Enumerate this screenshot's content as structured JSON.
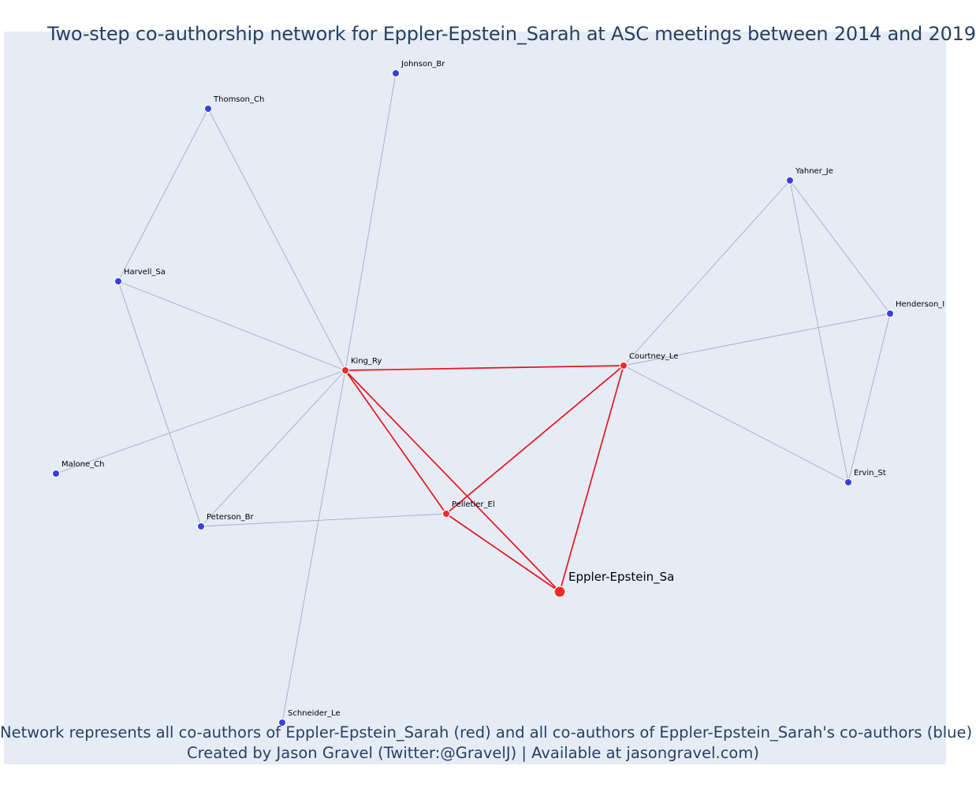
{
  "title": "Two-step co-authorship network for Eppler-Epstein_Sarah at ASC meetings between 2014 and 2019",
  "footer": {
    "line1": "Network represents all co-authors of Eppler-Epstein_Sarah (red) and all co-authors of Eppler-Epstein_Sarah's co-authors (blue)",
    "line2": "Created by Jason Gravel (Twitter:@GravelJ) | Available at jasongravel.com)"
  },
  "colors": {
    "plot_background": "#e5ecf6",
    "red_node": "#ef2b2b",
    "blue_node": "#3a3fe0",
    "red_edge": "#e8141a",
    "gray_edge": "#a7adbf",
    "title_text": "#2a3f5f"
  },
  "nodes": [
    {
      "id": "Eppler-Epstein_Sa",
      "label": "Eppler-Epstein_Sa",
      "group": "focal"
    },
    {
      "id": "King_Ry",
      "label": "King_Ry",
      "group": "red"
    },
    {
      "id": "Courtney_Le",
      "label": "Courtney_Le",
      "group": "red"
    },
    {
      "id": "Pelletier_El",
      "label": "Pelletier_El",
      "group": "red"
    },
    {
      "id": "Johnson_Br",
      "label": "Johnson_Br",
      "group": "blue"
    },
    {
      "id": "Thomson_Ch",
      "label": "Thomson_Ch",
      "group": "blue"
    },
    {
      "id": "Harvell_Sa",
      "label": "Harvell_Sa",
      "group": "blue"
    },
    {
      "id": "Malone_Ch",
      "label": "Malone_Ch",
      "group": "blue"
    },
    {
      "id": "Peterson_Br",
      "label": "Peterson_Br",
      "group": "blue"
    },
    {
      "id": "Schneider_Le",
      "label": "Schneider_Le",
      "group": "blue"
    },
    {
      "id": "Yahner_Je",
      "label": "Yahner_Je",
      "group": "blue"
    },
    {
      "id": "Henderson_I",
      "label": "Henderson_I",
      "group": "blue"
    },
    {
      "id": "Ervin_St",
      "label": "Ervin_St",
      "group": "blue"
    }
  ],
  "edges": [
    {
      "source": "King_Ry",
      "target": "Courtney_Le",
      "type": "red"
    },
    {
      "source": "King_Ry",
      "target": "Pelletier_El",
      "type": "red"
    },
    {
      "source": "King_Ry",
      "target": "Eppler-Epstein_Sa",
      "type": "red"
    },
    {
      "source": "Courtney_Le",
      "target": "Pelletier_El",
      "type": "red"
    },
    {
      "source": "Courtney_Le",
      "target": "Eppler-Epstein_Sa",
      "type": "red"
    },
    {
      "source": "Pelletier_El",
      "target": "Eppler-Epstein_Sa",
      "type": "red"
    },
    {
      "source": "King_Ry",
      "target": "Johnson_Br",
      "type": "gray"
    },
    {
      "source": "King_Ry",
      "target": "Thomson_Ch",
      "type": "gray"
    },
    {
      "source": "King_Ry",
      "target": "Harvell_Sa",
      "type": "gray"
    },
    {
      "source": "King_Ry",
      "target": "Malone_Ch",
      "type": "gray"
    },
    {
      "source": "King_Ry",
      "target": "Peterson_Br",
      "type": "gray"
    },
    {
      "source": "King_Ry",
      "target": "Schneider_Le",
      "type": "gray"
    },
    {
      "source": "Thomson_Ch",
      "target": "Harvell_Sa",
      "type": "gray"
    },
    {
      "source": "Harvell_Sa",
      "target": "Peterson_Br",
      "type": "gray"
    },
    {
      "source": "Peterson_Br",
      "target": "Pelletier_El",
      "type": "gray"
    },
    {
      "source": "Courtney_Le",
      "target": "Yahner_Je",
      "type": "gray"
    },
    {
      "source": "Courtney_Le",
      "target": "Henderson_I",
      "type": "gray"
    },
    {
      "source": "Courtney_Le",
      "target": "Ervin_St",
      "type": "gray"
    },
    {
      "source": "Yahner_Je",
      "target": "Henderson_I",
      "type": "gray"
    },
    {
      "source": "Yahner_Je",
      "target": "Ervin_St",
      "type": "gray"
    },
    {
      "source": "Henderson_I",
      "target": "Ervin_St",
      "type": "gray"
    }
  ]
}
